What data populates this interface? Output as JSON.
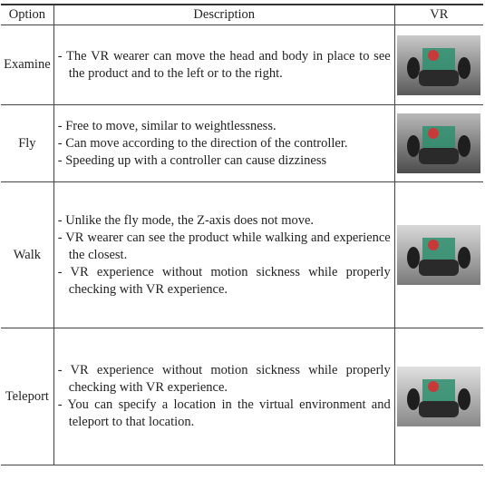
{
  "table": {
    "headers": [
      "Option",
      "Description",
      "VR"
    ],
    "rows": [
      {
        "option": "Examine",
        "description": [
          "- The VR wearer can move the head and body in place to see the product and to the left or to the right."
        ]
      },
      {
        "option": "Fly",
        "description": [
          "- Free to move, similar to weightlessness.",
          "- Can move according to the direction of the controller.",
          "- Speeding up with a controller can cause dizziness"
        ]
      },
      {
        "option": "Walk",
        "description": [
          "- Unlike the fly mode, the Z-axis does not move.",
          "- VR wearer can see the product while walking and experience the closest.",
          "- VR experience without motion sickness while properly checking with VR experience."
        ]
      },
      {
        "option": "Teleport",
        "description": [
          "- VR experience without motion sickness while properly checking with VR experience.",
          "- You can specify a location in the virtual environment and teleport to that location."
        ]
      }
    ]
  }
}
